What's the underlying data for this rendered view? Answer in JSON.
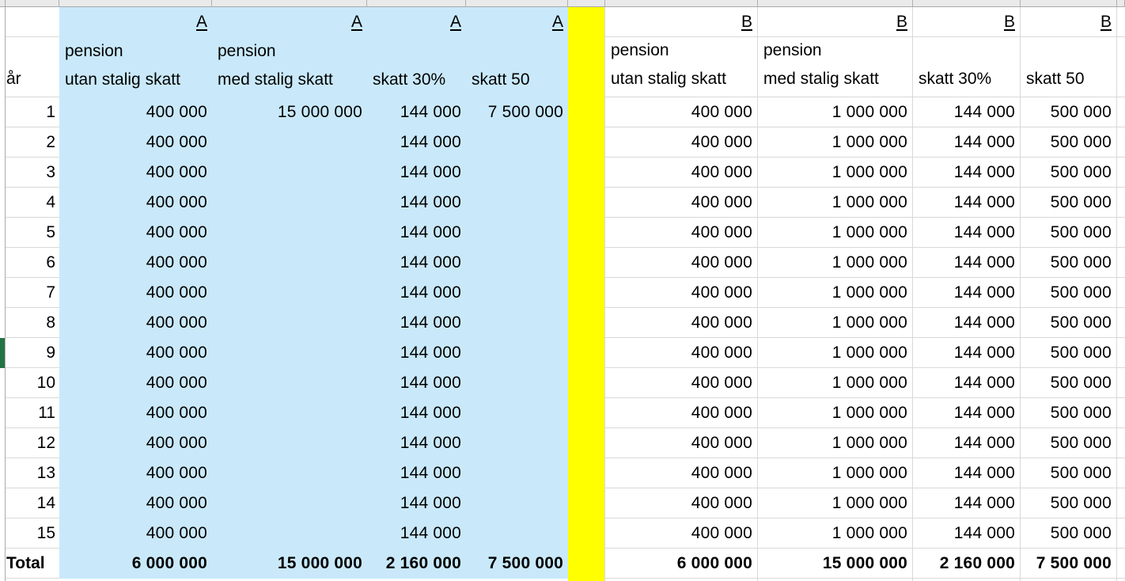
{
  "labels": {
    "year_col": "år",
    "total": "Total"
  },
  "column_headers": [
    {
      "line1": "pension",
      "line2": "utan stalig skatt"
    },
    {
      "line1": "pension",
      "line2": "med stalig skatt"
    },
    {
      "line1": "",
      "line2": "skatt 30%"
    },
    {
      "line1": "",
      "line2": "skatt 50"
    }
  ],
  "years": [
    "1",
    "2",
    "3",
    "4",
    "5",
    "6",
    "7",
    "8",
    "9",
    "10",
    "11",
    "12",
    "13",
    "14",
    "15"
  ],
  "section_a": {
    "letters": [
      "A",
      "A",
      "A",
      "A"
    ],
    "rows": [
      [
        "400 000",
        "15 000 000",
        "144 000",
        "7 500 000"
      ],
      [
        "400 000",
        "",
        "144 000",
        ""
      ],
      [
        "400 000",
        "",
        "144 000",
        ""
      ],
      [
        "400 000",
        "",
        "144 000",
        ""
      ],
      [
        "400 000",
        "",
        "144 000",
        ""
      ],
      [
        "400 000",
        "",
        "144 000",
        ""
      ],
      [
        "400 000",
        "",
        "144 000",
        ""
      ],
      [
        "400 000",
        "",
        "144 000",
        ""
      ],
      [
        "400 000",
        "",
        "144 000",
        ""
      ],
      [
        "400 000",
        "",
        "144 000",
        ""
      ],
      [
        "400 000",
        "",
        "144 000",
        ""
      ],
      [
        "400 000",
        "",
        "144 000",
        ""
      ],
      [
        "400 000",
        "",
        "144 000",
        ""
      ],
      [
        "400 000",
        "",
        "144 000",
        ""
      ],
      [
        "400 000",
        "",
        "144 000",
        ""
      ]
    ],
    "totals": [
      "6 000 000",
      "15 000 000",
      "2 160 000",
      "7 500 000"
    ]
  },
  "section_b": {
    "letters": [
      "B",
      "B",
      "B",
      "B"
    ],
    "rows": [
      [
        "400 000",
        "1 000 000",
        "144 000",
        "500 000"
      ],
      [
        "400 000",
        "1 000 000",
        "144 000",
        "500 000"
      ],
      [
        "400 000",
        "1 000 000",
        "144 000",
        "500 000"
      ],
      [
        "400 000",
        "1 000 000",
        "144 000",
        "500 000"
      ],
      [
        "400 000",
        "1 000 000",
        "144 000",
        "500 000"
      ],
      [
        "400 000",
        "1 000 000",
        "144 000",
        "500 000"
      ],
      [
        "400 000",
        "1 000 000",
        "144 000",
        "500 000"
      ],
      [
        "400 000",
        "1 000 000",
        "144 000",
        "500 000"
      ],
      [
        "400 000",
        "1 000 000",
        "144 000",
        "500 000"
      ],
      [
        "400 000",
        "1 000 000",
        "144 000",
        "500 000"
      ],
      [
        "400 000",
        "1 000 000",
        "144 000",
        "500 000"
      ],
      [
        "400 000",
        "1 000 000",
        "144 000",
        "500 000"
      ],
      [
        "400 000",
        "1 000 000",
        "144 000",
        "500 000"
      ],
      [
        "400 000",
        "1 000 000",
        "144 000",
        "500 000"
      ],
      [
        "400 000",
        "1 000 000",
        "144 000",
        "500 000"
      ]
    ],
    "totals": [
      "6 000 000",
      "15 000 000",
      "2 160 000",
      "7 500 000"
    ]
  },
  "colors": {
    "section_a_fill": "#C9E9FA",
    "separator_fill": "#FFFF00",
    "gridline": "#D9D9D9",
    "header_strip_bg": "#EAEAEA",
    "header_strip_border": "#A8A8A8",
    "selection_accent": "#217346",
    "text": "#000000"
  }
}
